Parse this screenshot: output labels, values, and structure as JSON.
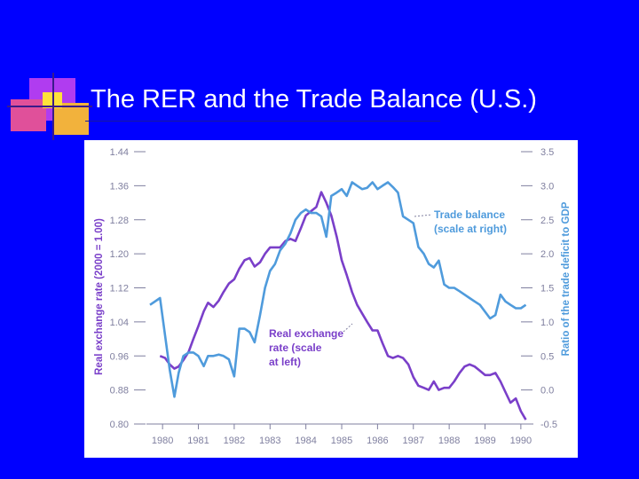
{
  "slide": {
    "title": "The RER and the Trade Balance (U.S.)"
  },
  "colors": {
    "background": "#0000ff",
    "rer_line": "#7a3fc9",
    "trade_line": "#4f9bdc",
    "axis_text": "#7f7f9f"
  },
  "chart_data": {
    "type": "line",
    "x_ticks": [
      "1980",
      "1981",
      "1982",
      "1983",
      "1984",
      "1985",
      "1986",
      "1987",
      "1988",
      "1989",
      "1990"
    ],
    "xlim": [
      1979.55,
      1990.35
    ],
    "left_axis": {
      "label": "Real exchange rate (2000 = 1.00)",
      "ticks": [
        "0.80",
        "0.88",
        "0.96",
        "1.04",
        "1.12",
        "1.20",
        "1.28",
        "1.36",
        "1.44"
      ],
      "ylim": [
        0.8,
        1.44
      ]
    },
    "right_axis": {
      "label": "Ratio of the trade deficit to GDP",
      "ticks": [
        "-0.5",
        "0.0",
        "0.5",
        "1.0",
        "1.5",
        "2.0",
        "2.5",
        "3.0",
        "3.5"
      ],
      "ylim": [
        -0.5,
        3.5
      ]
    },
    "series": [
      {
        "name": "Real exchange rate (scale at left)",
        "axis": "left",
        "color": "#7a3fc9",
        "x": [
          1979.93,
          1980.07,
          1980.2,
          1980.33,
          1980.45,
          1980.58,
          1980.73,
          1980.86,
          1981.0,
          1981.15,
          1981.27,
          1981.42,
          1981.57,
          1981.7,
          1981.85,
          1982.0,
          1982.14,
          1982.29,
          1982.43,
          1982.57,
          1982.72,
          1982.86,
          1983.0,
          1983.14,
          1983.28,
          1983.43,
          1983.57,
          1983.71,
          1983.86,
          1984.0,
          1984.14,
          1984.29,
          1984.43,
          1984.57,
          1984.71,
          1984.86,
          1985.0,
          1985.14,
          1985.29,
          1985.43,
          1985.57,
          1985.71,
          1985.86,
          1986.0,
          1986.14,
          1986.29,
          1986.43,
          1986.57,
          1986.71,
          1986.86,
          1987.0,
          1987.14,
          1987.29,
          1987.43,
          1987.57,
          1987.71,
          1987.86,
          1988.0,
          1988.14,
          1988.29,
          1988.43,
          1988.57,
          1988.71,
          1988.86,
          1989.0,
          1989.14,
          1989.29,
          1989.43,
          1989.57,
          1989.71,
          1989.86,
          1990.0,
          1990.14
        ],
        "values": [
          0.96,
          0.955,
          0.94,
          0.93,
          0.935,
          0.95,
          0.97,
          1.0,
          1.03,
          1.065,
          1.085,
          1.075,
          1.09,
          1.11,
          1.13,
          1.14,
          1.165,
          1.185,
          1.19,
          1.17,
          1.18,
          1.2,
          1.215,
          1.215,
          1.215,
          1.23,
          1.235,
          1.23,
          1.26,
          1.29,
          1.3,
          1.31,
          1.345,
          1.32,
          1.29,
          1.24,
          1.185,
          1.15,
          1.11,
          1.08,
          1.06,
          1.04,
          1.02,
          1.02,
          0.99,
          0.96,
          0.955,
          0.96,
          0.955,
          0.94,
          0.91,
          0.89,
          0.885,
          0.88,
          0.9,
          0.88,
          0.885,
          0.885,
          0.9,
          0.92,
          0.935,
          0.94,
          0.935,
          0.925,
          0.915,
          0.915,
          0.92,
          0.9,
          0.875,
          0.85,
          0.86,
          0.83,
          0.81
        ]
      },
      {
        "name": "Trade balance (scale at right)",
        "axis": "right",
        "color": "#4f9bdc",
        "x": [
          1979.65,
          1979.93,
          1980.07,
          1980.2,
          1980.33,
          1980.45,
          1980.58,
          1980.73,
          1980.86,
          1981.0,
          1981.15,
          1981.27,
          1981.42,
          1981.57,
          1981.7,
          1981.85,
          1982.0,
          1982.14,
          1982.29,
          1982.43,
          1982.57,
          1982.72,
          1982.86,
          1983.0,
          1983.14,
          1983.28,
          1983.43,
          1983.57,
          1983.71,
          1983.86,
          1984.0,
          1984.14,
          1984.29,
          1984.43,
          1984.57,
          1984.71,
          1984.86,
          1985.0,
          1985.14,
          1985.29,
          1985.43,
          1985.57,
          1985.71,
          1985.86,
          1986.0,
          1986.14,
          1986.29,
          1986.43,
          1986.57,
          1986.71,
          1986.86,
          1987.0,
          1987.14,
          1987.29,
          1987.43,
          1987.57,
          1987.71,
          1987.86,
          1988.0,
          1988.14,
          1988.29,
          1988.43,
          1988.57,
          1988.71,
          1988.86,
          1989.0,
          1989.14,
          1989.29,
          1989.43,
          1989.57,
          1989.71,
          1989.86,
          1990.0,
          1990.14
        ],
        "values": [
          1.25,
          1.35,
          0.8,
          0.3,
          -0.1,
          0.25,
          0.5,
          0.55,
          0.55,
          0.5,
          0.35,
          0.5,
          0.5,
          0.52,
          0.5,
          0.45,
          0.2,
          0.9,
          0.9,
          0.85,
          0.7,
          1.1,
          1.5,
          1.75,
          1.85,
          2.05,
          2.15,
          2.3,
          2.5,
          2.6,
          2.65,
          2.6,
          2.6,
          2.55,
          2.25,
          2.85,
          2.9,
          2.95,
          2.85,
          3.05,
          3.0,
          2.95,
          2.97,
          3.05,
          2.95,
          3.0,
          3.05,
          2.98,
          2.9,
          2.55,
          2.5,
          2.45,
          2.1,
          2.0,
          1.85,
          1.8,
          1.9,
          1.55,
          1.5,
          1.5,
          1.45,
          1.4,
          1.35,
          1.3,
          1.25,
          1.15,
          1.05,
          1.1,
          1.4,
          1.3,
          1.25,
          1.2,
          1.2,
          1.25
        ]
      }
    ],
    "annotations": [
      {
        "lines": [
          "Trade balance",
          "(scale at right)"
        ],
        "series": "trade"
      },
      {
        "lines": [
          "Real exchange",
          "rate (scale",
          "at left)"
        ],
        "series": "rer"
      }
    ]
  }
}
